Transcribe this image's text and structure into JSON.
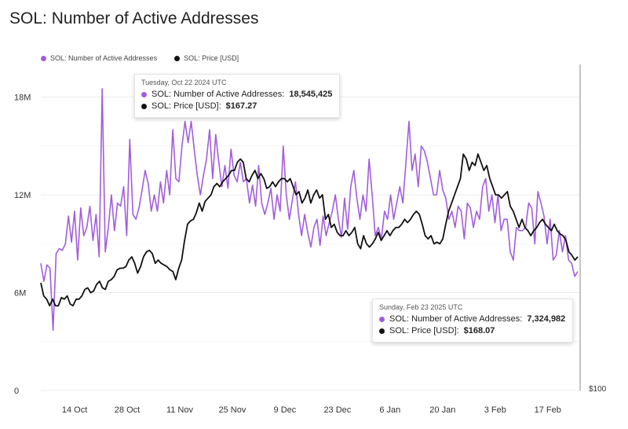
{
  "chart_data": {
    "type": "line",
    "title": "SOL: Number of Active Addresses",
    "y_left": {
      "ticks": [
        "0",
        "6M",
        "12M",
        "18M"
      ],
      "tick_values": [
        0,
        6000000,
        12000000,
        18000000
      ],
      "ylim": [
        0,
        20000000
      ]
    },
    "y_right": {
      "ticks": [
        "$100"
      ]
    },
    "x_ticks": [
      "14 Oct",
      "28 Oct",
      "11 Nov",
      "25 Nov",
      "9 Dec",
      "23 Dec",
      "6 Jan",
      "20 Jan",
      "3 Feb",
      "17 Feb"
    ],
    "x_tick_days": [
      9,
      23,
      37,
      51,
      65,
      79,
      93,
      107,
      121,
      135
    ],
    "x_range_days": [
      0,
      143
    ],
    "legend": [
      {
        "label": "SOL: Number of Active Addresses",
        "color": "#a25ddc"
      },
      {
        "label": "SOL: Price [USD]",
        "color": "#111111"
      }
    ],
    "series": [
      {
        "name": "SOL: Number of Active Addresses",
        "color": "#a25ddc",
        "step_days": 1,
        "values": [
          7.8,
          6.7,
          7.7,
          7.5,
          3.7,
          8.4,
          8.7,
          8.6,
          9.0,
          10.7,
          9.1,
          11.0,
          8.0,
          11.2,
          9.5,
          10.0,
          11.3,
          9.2,
          10.8,
          8.2,
          18.5,
          8.5,
          10.0,
          12.0,
          9.8,
          11.5,
          11.3,
          12.5,
          9.5,
          15.4,
          10.8,
          10.5,
          11.2,
          12.3,
          13.5,
          12.7,
          11.0,
          12.0,
          11.0,
          12.8,
          11.5,
          13.5,
          12.0,
          16.0,
          13.0,
          12.8,
          15.0,
          16.5,
          15.2,
          16.5,
          14.8,
          13.2,
          12.0,
          13.2,
          14.2,
          16.0,
          13.0,
          15.7,
          14.0,
          12.5,
          13.8,
          12.4,
          14.8,
          13.2,
          12.8,
          14.0,
          12.8,
          13.0,
          11.5,
          12.6,
          11.3,
          13.8,
          11.5,
          10.8,
          11.5,
          12.4,
          10.5,
          12.0,
          11.0,
          15.0,
          12.0,
          10.5,
          11.7,
          12.8,
          10.8,
          9.5,
          10.8,
          9.7,
          8.8,
          10.0,
          10.5,
          8.9,
          10.7,
          9.5,
          10.3,
          11.0,
          12.0,
          10.5,
          9.4,
          11.8,
          9.9,
          12.5,
          13.5,
          11.8,
          10.5,
          12.0,
          11.0,
          14.2,
          12.0,
          9.5,
          10.0,
          9.3,
          11.0,
          10.5,
          12.0,
          10.5,
          11.5,
          12.5,
          11.5,
          14.0,
          16.5,
          13.5,
          14.5,
          12.5,
          15.0,
          14.7,
          14.0,
          13.0,
          12.0,
          12.0,
          13.5,
          12.3,
          11.8,
          10.5,
          11.0,
          10.0,
          11.3,
          11.0,
          9.3,
          11.5,
          11.2,
          10.0,
          11.0,
          10.5,
          12.5,
          13.0,
          11.0,
          12.0,
          10.3,
          12.0,
          9.8,
          10.5,
          10.5,
          8.5,
          8.0,
          10.0,
          9.8,
          9.8,
          10.0,
          11.5,
          11.2,
          9.0,
          12.2,
          11.5,
          10.7,
          9.0,
          10.5,
          8.0,
          8.3,
          9.8,
          8.5,
          9.5,
          8.0,
          7.8,
          7.0,
          7.3
        ]
      },
      {
        "name": "SOL: Price [USD]",
        "color": "#111111",
        "step_days": 1,
        "values": [
          6.6,
          5.8,
          5.6,
          5.2,
          5.6,
          5.2,
          5.2,
          5.7,
          5.6,
          5.8,
          5.3,
          5.2,
          5.6,
          5.6,
          5.8,
          6.2,
          6.3,
          6.0,
          6.1,
          6.5,
          6.7,
          6.3,
          6.2,
          6.7,
          6.8,
          7.0,
          7.4,
          7.5,
          7.5,
          7.6,
          8.0,
          8.2,
          7.8,
          7.2,
          7.6,
          8.2,
          8.5,
          8.6,
          8.4,
          7.8,
          8.0,
          7.8,
          7.7,
          7.6,
          7.4,
          7.3,
          6.8,
          7.5,
          8.0,
          9.2,
          10.2,
          10.4,
          10.5,
          10.9,
          11.5,
          11.0,
          11.6,
          11.8,
          12.0,
          12.5,
          12.7,
          12.5,
          12.8,
          13.0,
          13.2,
          13.5,
          13.5,
          14.0,
          14.2,
          14.0,
          13.0,
          12.8,
          13.2,
          13.5,
          13.0,
          13.3,
          13.0,
          12.4,
          12.5,
          12.8,
          12.5,
          12.8,
          13.0,
          13.0,
          12.8,
          13.0,
          12.5,
          12.0,
          12.2,
          11.5,
          11.8,
          12.3,
          11.5,
          12.0,
          12.3,
          11.8,
          12.0,
          10.5,
          10.8,
          10.0,
          10.2,
          9.7,
          9.5,
          9.5,
          9.8,
          9.5,
          9.7,
          10.0,
          9.0,
          8.7,
          9.5,
          9.0,
          8.8,
          9.0,
          9.3,
          9.7,
          9.2,
          9.5,
          9.8,
          9.5,
          9.8,
          10.0,
          10.0,
          10.2,
          10.5,
          10.3,
          10.5,
          10.8,
          11.0,
          10.8,
          10.2,
          9.5,
          9.3,
          9.5,
          9.0,
          9.1,
          9.0,
          9.3,
          10.2,
          11.0,
          11.5,
          12.0,
          12.5,
          13.0,
          14.5,
          14.2,
          13.5,
          14.0,
          13.8,
          14.5,
          14.0,
          13.5,
          13.8,
          13.0,
          12.5,
          12.0,
          12.0,
          11.8,
          12.0,
          12.2,
          11.3,
          11.0,
          10.5,
          10.0,
          10.5,
          10.0,
          9.8,
          9.5,
          9.8,
          10.0,
          10.3,
          10.5,
          10.2,
          10.0,
          9.8,
          10.2,
          9.8,
          9.6,
          9.5,
          9.2,
          8.5,
          8.3,
          8.0,
          8.2
        ]
      }
    ],
    "tooltips": [
      {
        "date": "Tuesday, Oct 22 2024 UTC",
        "addresses_label": "SOL: Number of Active Addresses:",
        "addresses_value": "18,545,425",
        "price_label": "SOL: Price [USD]:",
        "price_value": "$167.27"
      },
      {
        "date": "Sunday, Feb 23 2025 UTC",
        "addresses_label": "SOL: Number of Active Addresses:",
        "addresses_value": "7,324,982",
        "price_label": "SOL: Price [USD]:",
        "price_value": "$168.07"
      }
    ]
  }
}
